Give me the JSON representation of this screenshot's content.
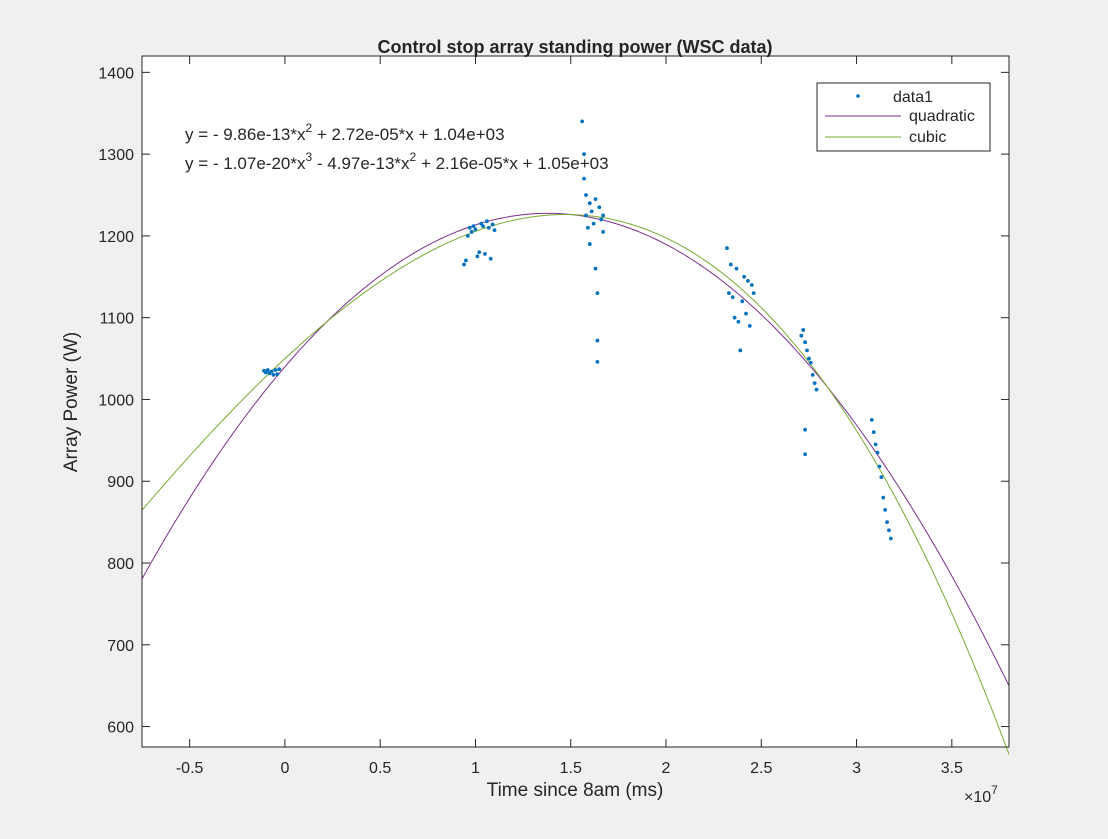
{
  "chart_data": {
    "type": "scatter",
    "title": "Control stop array standing power (WSC data)",
    "xlabel": "Time since 8am (ms)",
    "ylabel": "Array Power (W)",
    "x_exponent_label": "×10",
    "x_exponent_power": "7",
    "xlim": [
      -0.75,
      3.8
    ],
    "ylim": [
      575,
      1420
    ],
    "x_scale": 10000000,
    "x_ticks": [
      -0.5,
      0,
      0.5,
      1,
      1.5,
      2,
      2.5,
      3,
      3.5
    ],
    "x_tick_labels": [
      "-0.5",
      "0",
      "0.5",
      "1",
      "1.5",
      "2",
      "2.5",
      "3",
      "3.5"
    ],
    "y_ticks": [
      600,
      700,
      800,
      900,
      1000,
      1100,
      1200,
      1300,
      1400
    ],
    "y_tick_labels": [
      "600",
      "700",
      "800",
      "900",
      "1000",
      "1100",
      "1200",
      "1300",
      "1400"
    ],
    "grid": false,
    "legend_position": "top-right",
    "legend": [
      "data1",
      "quadratic",
      "cubic"
    ],
    "equations": {
      "quadratic": [
        "y = - 9.86e-13*x",
        "2",
        " + 2.72e-05*x + 1.04e+03"
      ],
      "cubic": [
        "y = - 1.07e-20*x",
        "3",
        " - 4.97e-13*x",
        "2",
        " + 2.16e-05*x + 1.05e+03"
      ]
    },
    "colors": {
      "data": "#0072bd",
      "quadratic": "#7e2f8e",
      "cubic": "#77ac30"
    },
    "series": [
      {
        "name": "data1",
        "points": [
          [
            -0.11,
            1035
          ],
          [
            -0.1,
            1033
          ],
          [
            -0.09,
            1036
          ],
          [
            -0.08,
            1032
          ],
          [
            -0.07,
            1034
          ],
          [
            -0.06,
            1030
          ],
          [
            -0.05,
            1036
          ],
          [
            -0.04,
            1031
          ],
          [
            -0.03,
            1037
          ],
          [
            0.94,
            1165
          ],
          [
            0.95,
            1170
          ],
          [
            0.96,
            1200
          ],
          [
            0.97,
            1210
          ],
          [
            0.98,
            1205
          ],
          [
            0.99,
            1212
          ],
          [
            1.0,
            1208
          ],
          [
            1.01,
            1175
          ],
          [
            1.02,
            1180
          ],
          [
            1.03,
            1215
          ],
          [
            1.04,
            1212
          ],
          [
            1.05,
            1178
          ],
          [
            1.06,
            1218
          ],
          [
            1.07,
            1210
          ],
          [
            1.08,
            1172
          ],
          [
            1.09,
            1214
          ],
          [
            1.1,
            1207
          ],
          [
            1.56,
            1340
          ],
          [
            1.57,
            1300
          ],
          [
            1.57,
            1270
          ],
          [
            1.58,
            1250
          ],
          [
            1.58,
            1225
          ],
          [
            1.59,
            1210
          ],
          [
            1.6,
            1240
          ],
          [
            1.6,
            1190
          ],
          [
            1.61,
            1230
          ],
          [
            1.62,
            1215
          ],
          [
            1.63,
            1245
          ],
          [
            1.63,
            1160
          ],
          [
            1.64,
            1130
          ],
          [
            1.64,
            1072
          ],
          [
            1.64,
            1046
          ],
          [
            1.65,
            1235
          ],
          [
            1.66,
            1220
          ],
          [
            1.67,
            1205
          ],
          [
            1.67,
            1225
          ],
          [
            2.32,
            1185
          ],
          [
            2.33,
            1130
          ],
          [
            2.34,
            1165
          ],
          [
            2.35,
            1125
          ],
          [
            2.36,
            1100
          ],
          [
            2.37,
            1160
          ],
          [
            2.38,
            1095
          ],
          [
            2.39,
            1060
          ],
          [
            2.4,
            1120
          ],
          [
            2.41,
            1150
          ],
          [
            2.42,
            1105
          ],
          [
            2.43,
            1145
          ],
          [
            2.44,
            1090
          ],
          [
            2.45,
            1140
          ],
          [
            2.46,
            1130
          ],
          [
            2.71,
            1078
          ],
          [
            2.72,
            1085
          ],
          [
            2.73,
            1070
          ],
          [
            2.73,
            963
          ],
          [
            2.73,
            933
          ],
          [
            2.74,
            1060
          ],
          [
            2.75,
            1050
          ],
          [
            2.76,
            1045
          ],
          [
            2.77,
            1030
          ],
          [
            2.78,
            1020
          ],
          [
            2.79,
            1012
          ],
          [
            3.08,
            975
          ],
          [
            3.09,
            960
          ],
          [
            3.1,
            945
          ],
          [
            3.11,
            935
          ],
          [
            3.12,
            918
          ],
          [
            3.13,
            905
          ],
          [
            3.14,
            880
          ],
          [
            3.15,
            865
          ],
          [
            3.16,
            850
          ],
          [
            3.17,
            840
          ],
          [
            3.18,
            830
          ]
        ]
      },
      {
        "name": "quadratic",
        "coefficients": [
          -9.86e-13,
          2.72e-05,
          1040.0
        ]
      },
      {
        "name": "cubic",
        "coefficients": [
          -1.07e-20,
          -4.97e-13,
          2.16e-05,
          1050.0
        ]
      }
    ]
  }
}
